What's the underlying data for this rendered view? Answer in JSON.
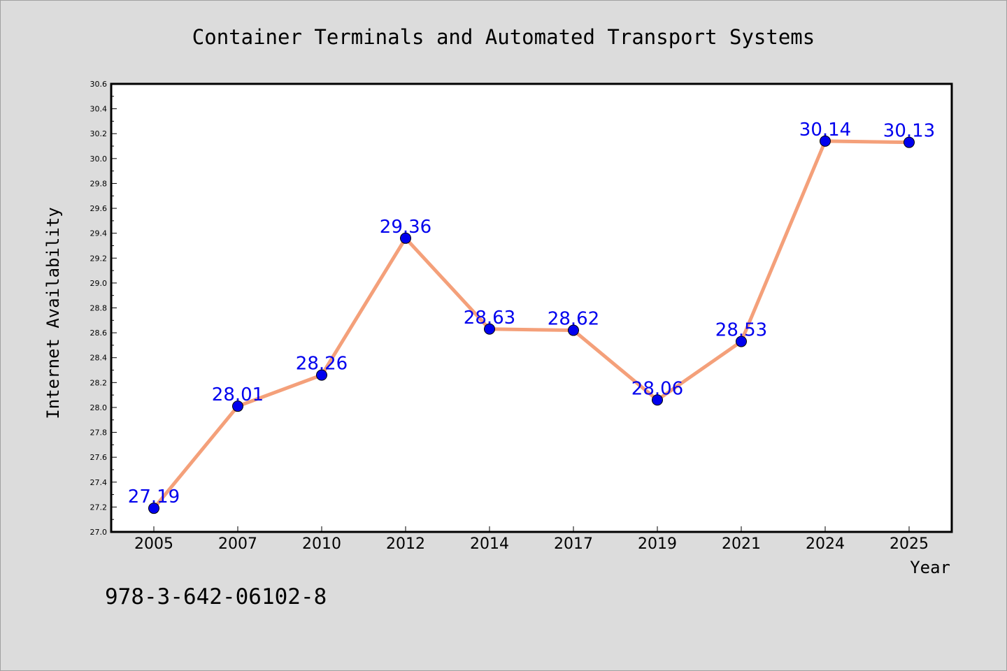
{
  "chart_data": {
    "type": "line",
    "title": "Container Terminals and Automated Transport Systems",
    "xlabel": "Year",
    "ylabel": "Internet Availability",
    "categories": [
      "2005",
      "2007",
      "2010",
      "2012",
      "2014",
      "2017",
      "2019",
      "2021",
      "2024",
      "2025"
    ],
    "values": [
      27.19,
      28.01,
      28.26,
      29.36,
      28.63,
      28.62,
      28.06,
      28.53,
      30.14,
      30.13
    ],
    "data_labels": [
      "27.19",
      "28.01",
      "28.26",
      "29.36",
      "28.63",
      "28.62",
      "28.06",
      "28.53",
      "30.14",
      "30.13"
    ],
    "ylim": [
      27.0,
      30.6
    ],
    "yticks": [
      "27.0",
      "27.2",
      "27.4",
      "27.6",
      "27.8",
      "28.0",
      "28.2",
      "28.4",
      "28.6",
      "28.8",
      "29.0",
      "29.2",
      "29.4",
      "29.6",
      "29.8",
      "30.0",
      "30.2",
      "30.4",
      "30.6"
    ],
    "grid": false,
    "line_color": "#f4a07a",
    "marker_color": "#0000ee",
    "label_color": "#0000ee",
    "annotation": "978-3-642-06102-8"
  }
}
